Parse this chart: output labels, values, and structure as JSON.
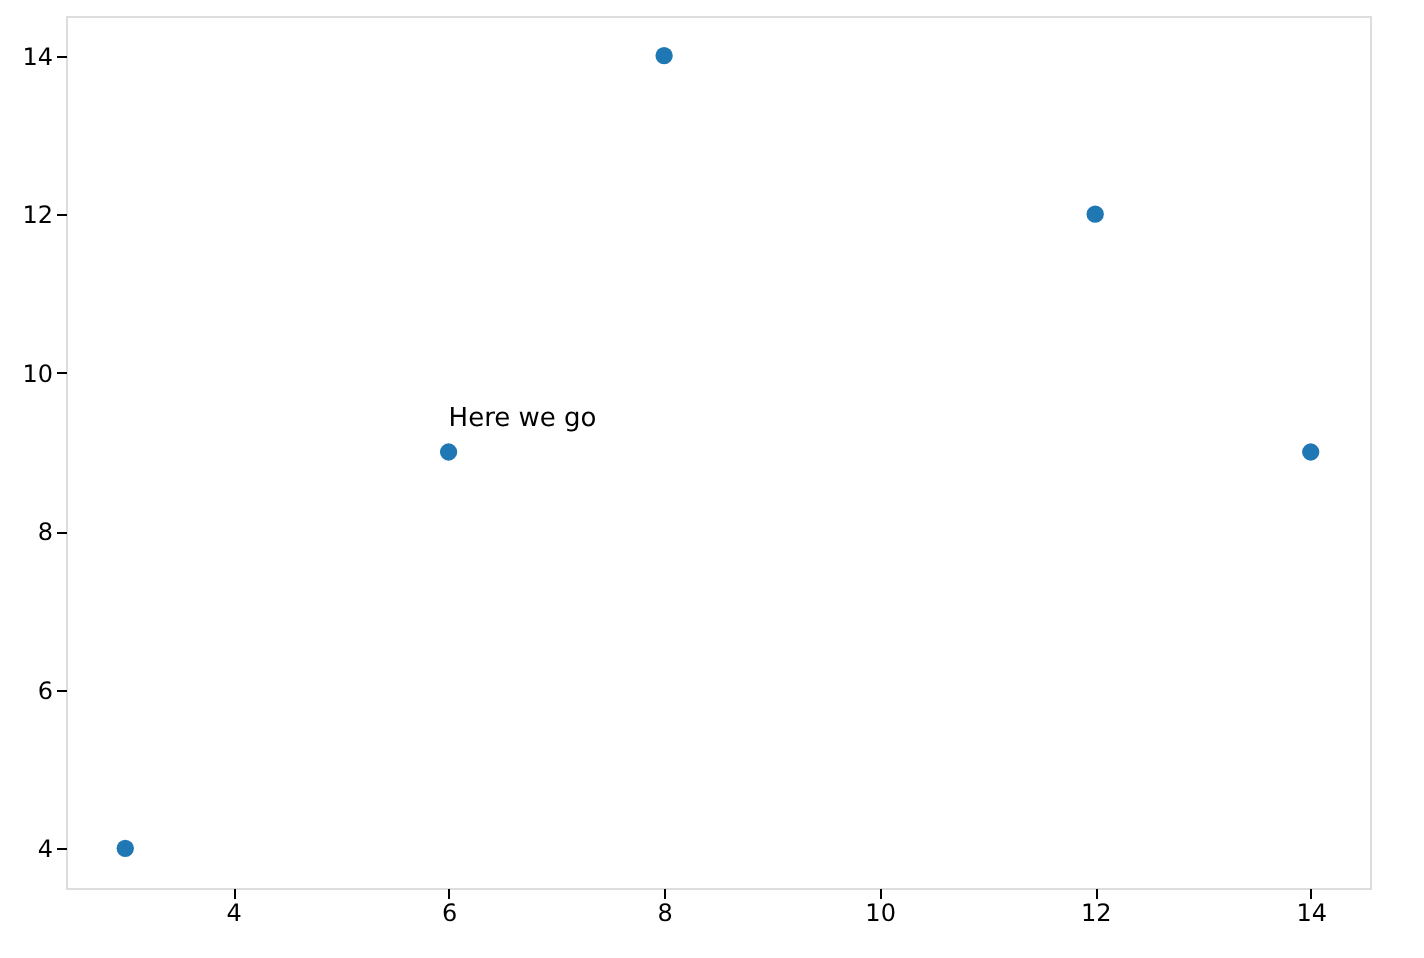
{
  "chart_data": {
    "type": "scatter",
    "x": [
      3,
      6,
      8,
      12,
      14
    ],
    "series": [
      {
        "color": "#1f77b4",
        "values": [
          4,
          9,
          14,
          12,
          9
        ]
      }
    ],
    "xlim": [
      2.45,
      14.55
    ],
    "xticks": [
      4,
      6,
      8,
      10,
      12,
      14
    ],
    "ylim": [
      3.5,
      14.5
    ],
    "yticks": [
      4,
      6,
      8,
      10,
      12,
      14
    ],
    "marker": "circle",
    "grid": false,
    "annotations": [
      {
        "text": "Here we go",
        "x": 6,
        "y": 9
      }
    ]
  }
}
